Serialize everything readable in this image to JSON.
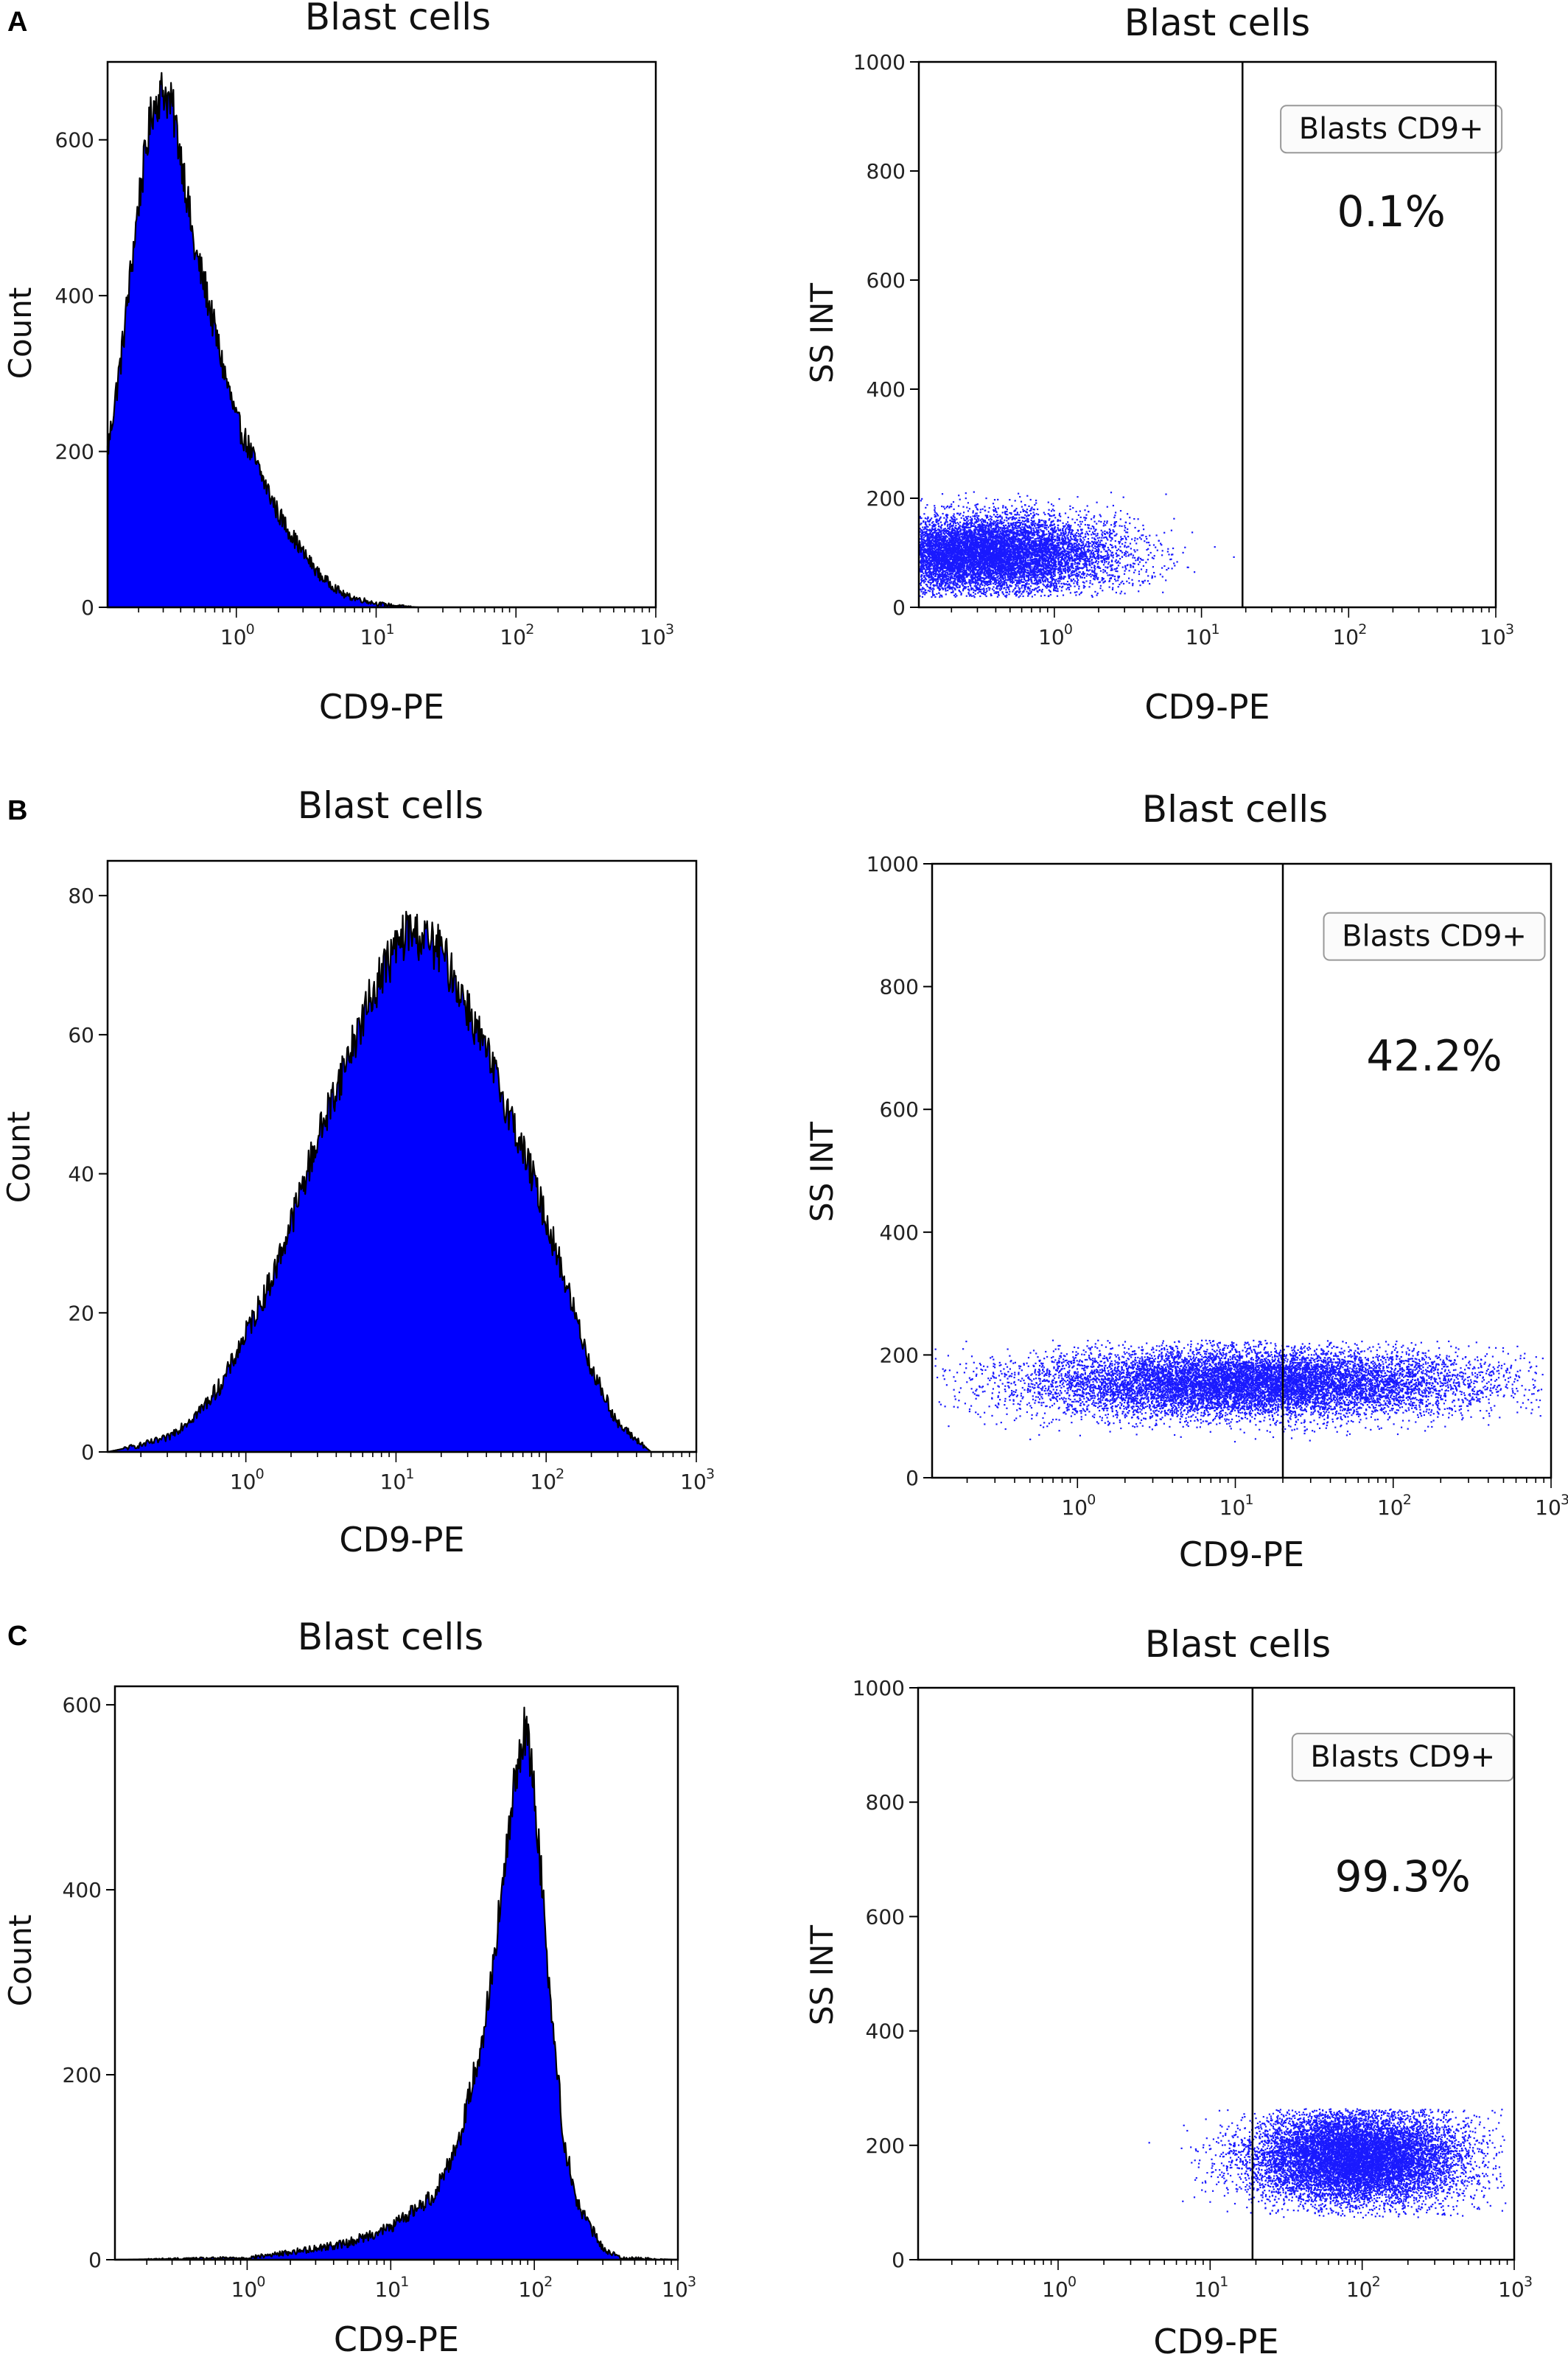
{
  "figure": {
    "panel_letters": [
      "A",
      "B",
      "C"
    ]
  },
  "colors": {
    "fill": "#0000ff",
    "outline": "#000000",
    "points": "#1a1aff"
  },
  "chart_data": [
    {
      "id": "A-hist",
      "type": "area",
      "panel": "A",
      "title": "Blast cells",
      "xlabel": "CD9-PE",
      "ylabel": "Count",
      "xscale": "log",
      "xlim": [
        0.12,
        1000
      ],
      "ylim": [
        0,
        700
      ],
      "yticks": [
        0,
        200,
        400,
        600
      ],
      "xticks": [
        "10^0",
        "10^1",
        "10^2",
        "10^3"
      ],
      "series": [
        {
          "x": [
            0.12,
            0.15,
            0.2,
            0.25,
            0.3,
            0.35,
            0.42,
            0.5,
            0.6,
            0.8,
            1,
            1.5,
            2,
            3,
            4,
            6,
            10,
            14,
            20,
            40,
            100,
            1000
          ],
          "values": [
            200,
            320,
            520,
            640,
            665,
            640,
            560,
            460,
            410,
            310,
            240,
            170,
            120,
            70,
            40,
            15,
            5,
            2,
            0,
            0,
            0,
            0
          ]
        }
      ]
    },
    {
      "id": "A-scatter",
      "type": "scatter",
      "panel": "A",
      "title": "Blast cells",
      "xlabel": "CD9-PE",
      "ylabel": "SS INT",
      "xscale": "log",
      "xlim": [
        0.12,
        1000
      ],
      "ylim": [
        0,
        1000
      ],
      "yticks": [
        0,
        200,
        400,
        600,
        800,
        1000
      ],
      "xticks": [
        "10^0",
        "10^1",
        "10^2",
        "10^3"
      ],
      "gate_x": 19,
      "gate_label": "Blasts CD9+",
      "percent_label": "0.1%",
      "population": {
        "x_log10_center": -0.5,
        "x_log10_sd": 0.45,
        "y_center": 100,
        "y_sd": 35,
        "x_log10_min": -0.92,
        "x_log10_max": 1.7,
        "y_min": 20,
        "y_max": 215,
        "points": 9000
      }
    },
    {
      "id": "B-hist",
      "type": "area",
      "panel": "B",
      "title": "Blast cells",
      "xlabel": "CD9-PE",
      "ylabel": "Count",
      "xscale": "log",
      "xlim": [
        0.12,
        1000
      ],
      "ylim": [
        0,
        85
      ],
      "yticks": [
        0,
        20,
        40,
        60,
        80
      ],
      "xticks": [
        "10^0",
        "10^1",
        "10^2",
        "10^3"
      ],
      "series": [
        {
          "x": [
            0.12,
            0.2,
            0.3,
            0.5,
            0.7,
            1,
            1.5,
            2,
            3,
            5,
            8,
            12,
            15,
            20,
            30,
            50,
            80,
            120,
            200,
            300,
            500,
            1000
          ],
          "values": [
            0,
            1,
            2,
            6,
            10,
            17,
            25,
            33,
            45,
            58,
            69,
            75,
            74,
            72,
            64,
            52,
            40,
            28,
            12,
            4,
            0,
            0
          ]
        }
      ]
    },
    {
      "id": "B-scatter",
      "type": "scatter",
      "panel": "B",
      "title": "Blast cells",
      "xlabel": "CD9-PE",
      "ylabel": "SS INT",
      "xscale": "log",
      "xlim": [
        0.12,
        1000
      ],
      "ylim": [
        0,
        1000
      ],
      "yticks": [
        0,
        200,
        400,
        600,
        800,
        1000
      ],
      "xticks": [
        "10^0",
        "10^1",
        "10^2",
        "10^3"
      ],
      "gate_x": 20,
      "gate_label": "Blasts CD9+",
      "percent_label": "42.2%",
      "population": {
        "x_log10_center": 1.1,
        "x_log10_sd": 0.7,
        "y_center": 155,
        "y_sd": 28,
        "x_log10_min": -0.92,
        "x_log10_max": 2.95,
        "y_min": 60,
        "y_max": 225,
        "points": 11000
      }
    },
    {
      "id": "C-hist",
      "type": "area",
      "panel": "C",
      "title": "Blast cells",
      "xlabel": "CD9-PE",
      "ylabel": "Count",
      "xscale": "log",
      "xlim": [
        0.12,
        1000
      ],
      "ylim": [
        0,
        620
      ],
      "yticks": [
        0,
        200,
        400,
        600
      ],
      "xticks": [
        "10^0",
        "10^1",
        "10^2",
        "10^3"
      ],
      "series": [
        {
          "x": [
            0.12,
            1,
            2,
            5,
            10,
            20,
            30,
            45,
            60,
            75,
            85,
            95,
            110,
            130,
            160,
            200,
            300,
            400,
            1000
          ],
          "values": [
            0,
            2,
            8,
            18,
            35,
            70,
            130,
            250,
            400,
            530,
            575,
            540,
            430,
            280,
            130,
            60,
            12,
            2,
            0
          ]
        }
      ]
    },
    {
      "id": "C-scatter",
      "type": "scatter",
      "panel": "C",
      "title": "Blast cells",
      "xlabel": "CD9-PE",
      "ylabel": "SS INT",
      "xscale": "log",
      "xlim": [
        0.12,
        1000
      ],
      "ylim": [
        0,
        1000
      ],
      "yticks": [
        0,
        200,
        400,
        600,
        800,
        1000
      ],
      "xticks": [
        "10^0",
        "10^1",
        "10^2",
        "10^3"
      ],
      "gate_x": 19,
      "gate_label": "Blasts CD9+",
      "percent_label": "99.3%",
      "population": {
        "x_log10_center": 1.95,
        "x_log10_sd": 0.35,
        "y_center": 180,
        "y_sd": 40,
        "x_log10_min": -0.6,
        "x_log10_max": 2.95,
        "y_min": 75,
        "y_max": 265,
        "points": 11000
      }
    }
  ]
}
